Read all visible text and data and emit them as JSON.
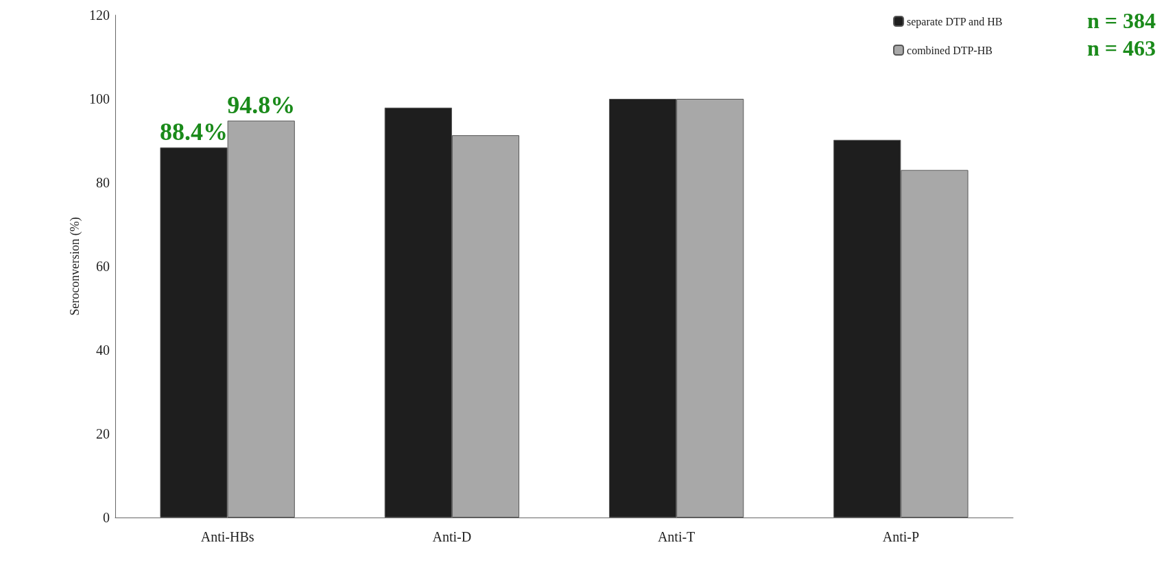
{
  "chart_data": {
    "type": "bar",
    "ylabel": "Seroconversion (%)",
    "categories": [
      "Anti-HBs",
      "Anti-D",
      "Anti-T",
      "Anti-P"
    ],
    "series": [
      {
        "name": "separate DTP and HB",
        "color": "#1e1e1e",
        "values": [
          88.4,
          97.9,
          100,
          90.2
        ],
        "value_labels": [
          "88.4%",
          null,
          null,
          null
        ]
      },
      {
        "name": "combined DTP-HB",
        "color": "#a8a8a8",
        "values": [
          94.8,
          91.3,
          100,
          83
        ],
        "value_labels": [
          "94.8%",
          null,
          null,
          null
        ]
      }
    ],
    "ylim": [
      0,
      120
    ],
    "yticks": [
      0,
      20,
      40,
      60,
      80,
      100,
      120
    ],
    "grid": false,
    "legend": "top right",
    "annotations": [
      "n = 384",
      "n = 463"
    ]
  }
}
